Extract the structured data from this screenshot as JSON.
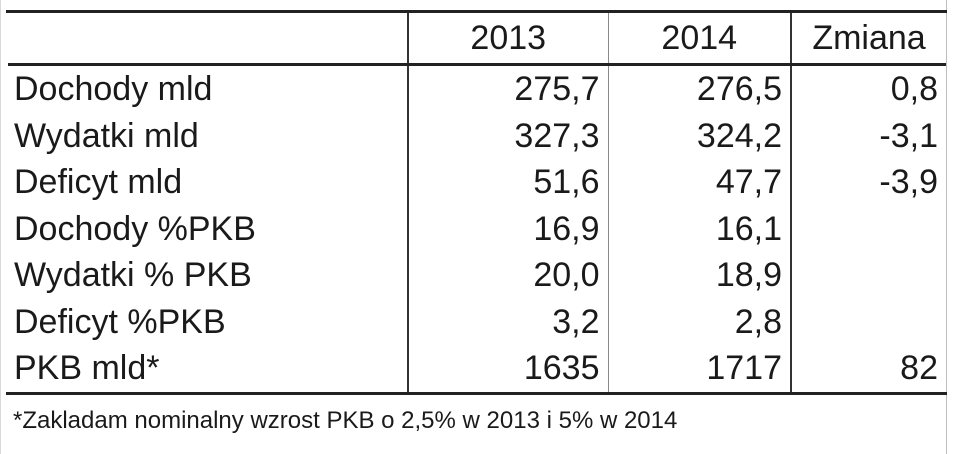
{
  "table": {
    "headers": [
      "",
      "2013",
      "2014",
      "Zmiana"
    ],
    "rows": [
      {
        "label": "Dochody mld",
        "y2013": "275,7",
        "y2014": "276,5",
        "change": "0,8"
      },
      {
        "label": "Wydatki mld",
        "y2013": "327,3",
        "y2014": "324,2",
        "change": "-3,1"
      },
      {
        "label": "Deficyt mld",
        "y2013": "51,6",
        "y2014": "47,7",
        "change": "-3,9"
      },
      {
        "label": "Dochody %PKB",
        "y2013": "16,9",
        "y2014": "16,1",
        "change": ""
      },
      {
        "label": "Wydatki % PKB",
        "y2013": "20,0",
        "y2014": "18,9",
        "change": ""
      },
      {
        "label": "Deficyt %PKB",
        "y2013": "3,2",
        "y2014": "2,8",
        "change": ""
      },
      {
        "label": "PKB mld*",
        "y2013": "1635",
        "y2014": "1717",
        "change": "82"
      }
    ]
  },
  "footnote": "*Zakladam nominalny wzrost PKB o 2,5% w 2013 i 5% w 2014"
}
